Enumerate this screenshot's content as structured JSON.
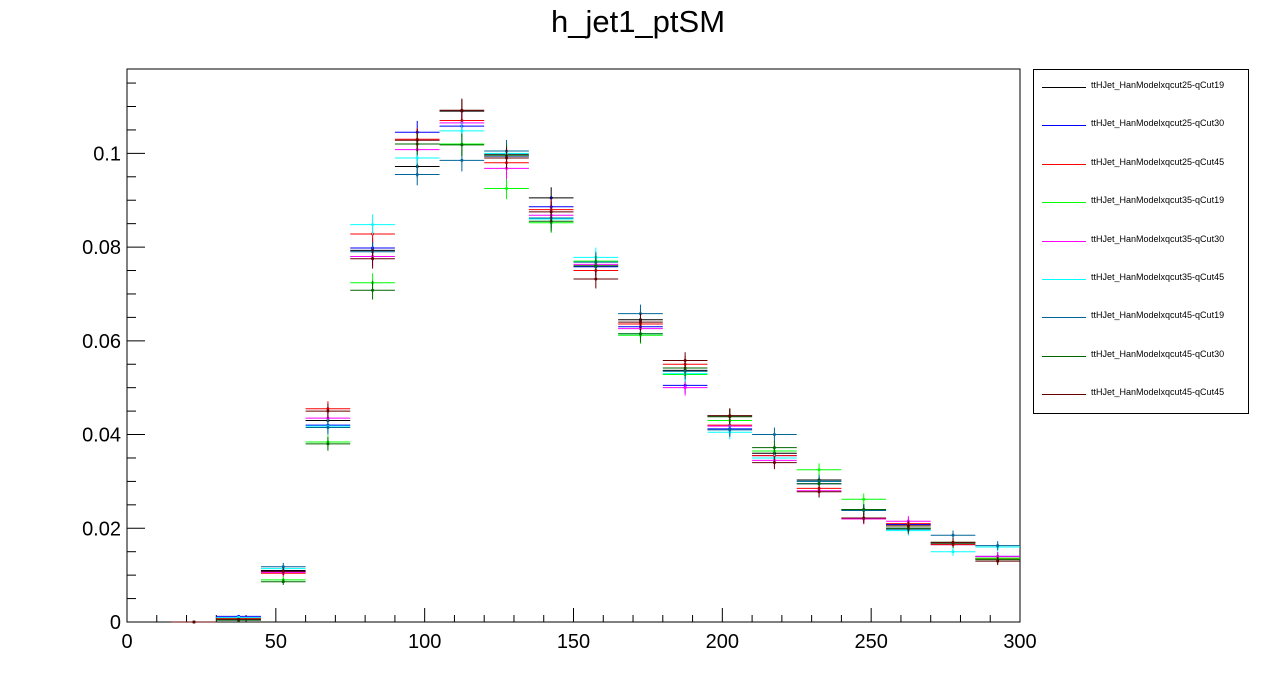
{
  "chart_data": {
    "type": "scatter",
    "title": "h_jet1_ptSM",
    "xlabel": "",
    "ylabel": "",
    "xlim": [
      0,
      300
    ],
    "ylim": [
      0,
      0.118
    ],
    "bin_width": 15,
    "x_ticks": [
      "0",
      "50",
      "100",
      "150",
      "200",
      "250",
      "300"
    ],
    "y_ticks": [
      "0",
      "0.02",
      "0.04",
      "0.06",
      "0.08",
      "0.1"
    ],
    "legend_position": "outside-right",
    "x": [
      22.5,
      37.5,
      52.5,
      67.5,
      82.5,
      97.5,
      112.5,
      127.5,
      142.5,
      157.5,
      172.5,
      187.5,
      202.5,
      217.5,
      232.5,
      247.5,
      262.5,
      277.5,
      292.5
    ],
    "series": [
      {
        "name": "ttHJet_HanModelxqcut25-qCut19",
        "color": "#000000",
        "values": [
          0,
          0.001,
          0.011,
          0.043,
          0.0793,
          0.0972,
          0.109,
          0.0998,
          0.0905,
          0.076,
          0.0645,
          0.0537,
          0.044,
          0.036,
          0.0303,
          0.024,
          0.02,
          0.017,
          0.0136
        ]
      },
      {
        "name": "ttHJet_HanModelxqcut25-qCut30",
        "color": "#0000ff",
        "values": [
          0,
          0.0012,
          0.0108,
          0.042,
          0.0798,
          0.1045,
          0.1058,
          0.0994,
          0.0886,
          0.0758,
          0.063,
          0.0505,
          0.0412,
          0.0355,
          0.0295,
          0.024,
          0.0208,
          0.0165,
          0.014
        ]
      },
      {
        "name": "ttHJet_HanModelxqcut25-qCut45",
        "color": "#ff0000",
        "values": [
          0,
          0.0008,
          0.0104,
          0.0455,
          0.0828,
          0.103,
          0.107,
          0.098,
          0.088,
          0.075,
          0.0636,
          0.055,
          0.042,
          0.0355,
          0.0285,
          0.022,
          0.021,
          0.0165,
          0.0135
        ]
      },
      {
        "name": "ttHJet_HanModelxqcut35-qCut19",
        "color": "#00ff00",
        "values": [
          0,
          0.0006,
          0.009,
          0.0384,
          0.0724,
          0.102,
          0.102,
          0.0925,
          0.0852,
          0.077,
          0.0612,
          0.0528,
          0.043,
          0.0365,
          0.0325,
          0.0262,
          0.0205,
          0.017,
          0.0136
        ]
      },
      {
        "name": "ttHJet_HanModelxqcut35-qCut30",
        "color": "#ff00ff",
        "values": [
          0,
          0.001,
          0.0106,
          0.0435,
          0.078,
          0.1008,
          0.1065,
          0.0968,
          0.0868,
          0.0763,
          0.0626,
          0.05,
          0.0418,
          0.0345,
          0.028,
          0.022,
          0.0215,
          0.0168,
          0.014
        ]
      },
      {
        "name": "ttHJet_HanModelxqcut35-qCut45",
        "color": "#00ffff",
        "values": [
          0,
          0.001,
          0.0114,
          0.0418,
          0.0848,
          0.099,
          0.1048,
          0.1,
          0.086,
          0.0778,
          0.0615,
          0.053,
          0.0405,
          0.035,
          0.03,
          0.024,
          0.0195,
          0.015,
          0.016
        ]
      },
      {
        "name": "ttHJet_HanModelxqcut45-qCut19",
        "color": "#006699",
        "values": [
          0,
          0.0004,
          0.0118,
          0.0415,
          0.079,
          0.0955,
          0.0985,
          0.1005,
          0.0862,
          0.0768,
          0.0658,
          0.0535,
          0.041,
          0.04,
          0.03,
          0.0238,
          0.0198,
          0.0185,
          0.0163
        ]
      },
      {
        "name": "ttHJet_HanModelxqcut45-qCut30",
        "color": "#006600",
        "values": [
          0,
          0.0004,
          0.0086,
          0.038,
          0.0708,
          0.102,
          0.1018,
          0.0995,
          0.0855,
          0.076,
          0.0615,
          0.0542,
          0.0438,
          0.0372,
          0.0295,
          0.024,
          0.02,
          0.0168,
          0.0133
        ]
      },
      {
        "name": "ttHJet_HanModelxqcut45-qCut45",
        "color": "#660000",
        "values": [
          0,
          0.0006,
          0.0108,
          0.045,
          0.0775,
          0.1028,
          0.1092,
          0.099,
          0.0875,
          0.0732,
          0.064,
          0.0558,
          0.044,
          0.034,
          0.0278,
          0.0222,
          0.0205,
          0.017,
          0.013
        ]
      }
    ]
  }
}
